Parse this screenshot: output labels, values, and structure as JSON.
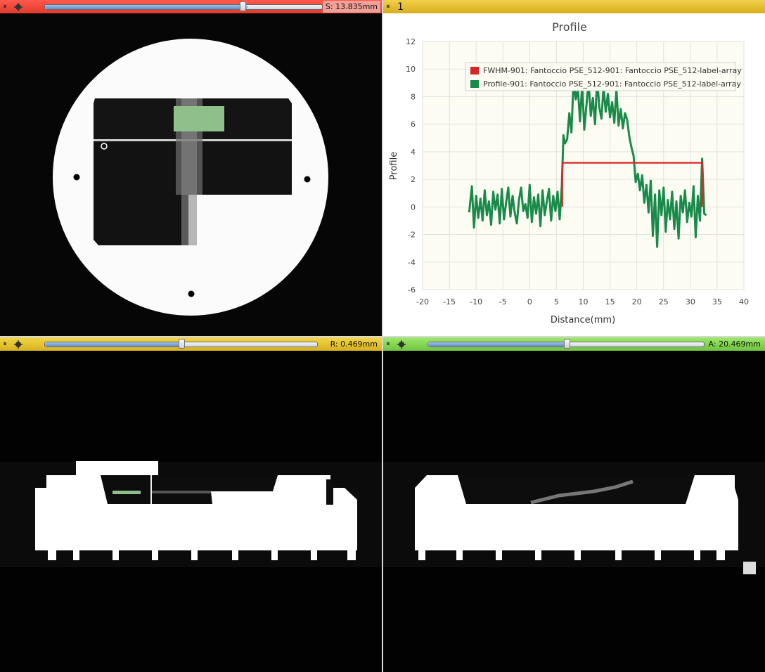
{
  "panels": {
    "red": {
      "readout": "S: 13.835mm",
      "slider_value": 0.73
    },
    "yellow": {
      "readout": "R: 0.469mm",
      "slider_value": 0.5
    },
    "green": {
      "readout": "A: 20.469mm",
      "slider_value": 0.5
    },
    "chart": {
      "layout_number": "1"
    }
  },
  "colors": {
    "red_bar": "#e8473a",
    "yellow_bar": "#e4c331",
    "green_bar": "#84d855",
    "label_overlay": "#8fbf8a"
  },
  "icons": {
    "pin": "pin-icon",
    "link": "link-icon"
  },
  "chart_data": {
    "type": "line",
    "title": "Profile",
    "xlabel": "Distance(mm)",
    "ylabel": "Profile",
    "xlim": [
      -20,
      40
    ],
    "ylim": [
      -6,
      12
    ],
    "xticks": [
      "-20",
      "-15",
      "-10",
      "-5",
      "0",
      "5",
      "10",
      "15",
      "20",
      "25",
      "30",
      "35",
      "40"
    ],
    "yticks": [
      "12",
      "10",
      "8",
      "6",
      "4",
      "2",
      "0",
      "-2",
      "-4",
      "-6"
    ],
    "grid": true,
    "legend_placement": "top-right",
    "series": [
      {
        "name": "FWHM-901: Fantoccio PSE_512-901: Fantoccio PSE_512-label-array",
        "color": "#d62728",
        "x": [
          6.1,
          6.1,
          32.2,
          32.2
        ],
        "y": [
          0.0,
          3.2,
          3.2,
          0.0
        ]
      },
      {
        "name": "Profile-901: Fantoccio PSE_512-901: Fantoccio PSE_512-label-array",
        "color": "#1a8a4a",
        "x": [
          -11.3,
          -10.8,
          -10.4,
          -10,
          -9.6,
          -9.2,
          -8.8,
          -8.4,
          -8,
          -7.6,
          -7.2,
          -6.8,
          -6.4,
          -6,
          -5.6,
          -5.2,
          -4.8,
          -4.4,
          -4,
          -3.6,
          -3.2,
          -2.8,
          -2.4,
          -2,
          -1.6,
          -1.2,
          -0.8,
          -0.4,
          0,
          0.4,
          0.8,
          1.2,
          1.6,
          2,
          2.4,
          2.8,
          3.2,
          3.6,
          4,
          4.4,
          4.8,
          5.2,
          5.6,
          6,
          6.3,
          6.6,
          7,
          7.4,
          7.8,
          8.2,
          8.6,
          9,
          9.4,
          9.8,
          10.2,
          10.6,
          11,
          11.4,
          11.8,
          12.2,
          12.6,
          13,
          13.4,
          13.8,
          14.2,
          14.6,
          15,
          15.4,
          15.8,
          16.2,
          16.6,
          17,
          17.4,
          17.8,
          18.2,
          18.6,
          19,
          19.4,
          19.8,
          20.2,
          20.6,
          21,
          21.4,
          21.8,
          22.2,
          22.6,
          23,
          23.4,
          23.8,
          24.2,
          24.6,
          25,
          25.4,
          25.8,
          26.2,
          26.6,
          27,
          27.4,
          27.8,
          28.2,
          28.6,
          29,
          29.4,
          29.8,
          30.2,
          30.6,
          31,
          31.4,
          31.8,
          32.2,
          32.6,
          33
        ],
        "y": [
          -0.4,
          1.5,
          -1.5,
          0.8,
          -0.8,
          0.6,
          -1.0,
          1.2,
          -0.6,
          0.4,
          -1.3,
          1.1,
          -0.2,
          0.9,
          -1.2,
          1.3,
          -0.9,
          0.3,
          1.4,
          -0.7,
          0.8,
          -0.4,
          -1.2,
          0.5,
          1.4,
          -0.3,
          0.2,
          -0.8,
          1.6,
          -1.1,
          0.7,
          -0.5,
          0.9,
          -1.4,
          1.2,
          -0.6,
          0.4,
          1.3,
          -1.0,
          0.8,
          -0.3,
          1.1,
          -0.9,
          1.5,
          5.2,
          4.6,
          4.9,
          6.8,
          5.4,
          9.2,
          7.8,
          8.6,
          6.2,
          8.9,
          5.6,
          7.4,
          9.1,
          6.6,
          7.9,
          6.0,
          9.3,
          7.2,
          6.4,
          8.7,
          6.9,
          8.2,
          6.5,
          7.6,
          6.1,
          8.5,
          5.9,
          7.1,
          5.7,
          6.8,
          6.3,
          5.1,
          4.3,
          3.7,
          1.8,
          2.4,
          1.2,
          2.3,
          0.3,
          1.6,
          -0.4,
          1.9,
          -2.1,
          0.9,
          -2.9,
          1.2,
          -0.6,
          1.4,
          -1.8,
          0.5,
          -0.9,
          1.1,
          -1.6,
          0.4,
          -2.3,
          0.8,
          -0.4,
          1.2,
          -1.1,
          0.3,
          -0.7,
          1.5,
          -2.2,
          0.8,
          -1.0,
          3.5,
          -0.5,
          -0.6
        ]
      }
    ]
  }
}
